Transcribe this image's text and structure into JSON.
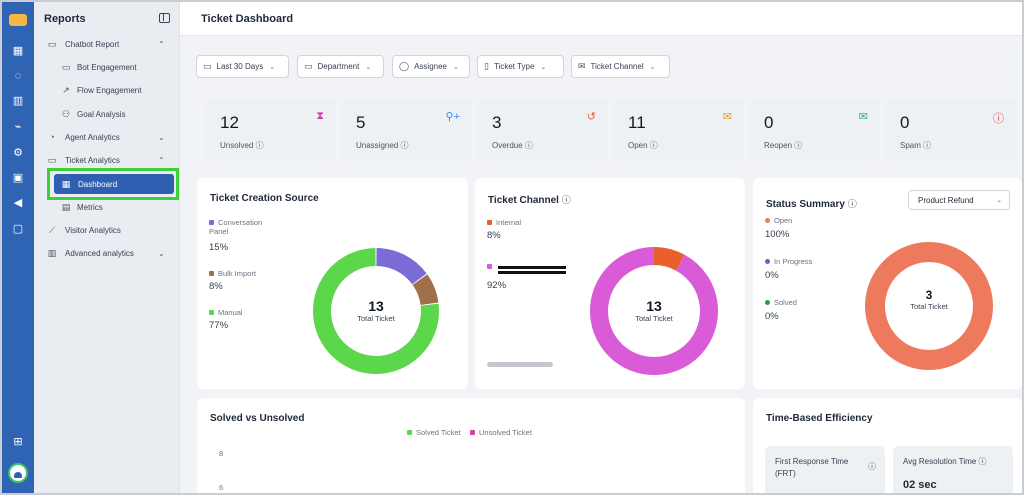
{
  "rail": {
    "icons": [
      "grid-icon",
      "chat-icon",
      "bar-chart-icon",
      "plug-icon",
      "gear-icon",
      "contact-icon",
      "megaphone-icon",
      "bot-icon",
      "gift-icon"
    ]
  },
  "sidebar": {
    "title": "Reports",
    "items": [
      {
        "label": "Chatbot Report",
        "icon": "bot-report-icon",
        "expanded": true
      },
      {
        "label": "Bot Engagement",
        "icon": "calendar-icon"
      },
      {
        "label": "Flow Engagement",
        "icon": "flow-icon"
      },
      {
        "label": "Goal Analysis",
        "icon": "users-icon"
      },
      {
        "label": "Agent Analytics",
        "icon": "pie-icon",
        "expanded": false
      },
      {
        "label": "Ticket Analytics",
        "icon": "ticket-icon",
        "expanded": true
      },
      {
        "label": "Dashboard",
        "icon": "grid-icon",
        "active": true
      },
      {
        "label": "Metrics",
        "icon": "metrics-icon"
      },
      {
        "label": "Visitor Analytics",
        "icon": "line-chart-icon"
      },
      {
        "label": "Advanced analytics",
        "icon": "bar-chart-icon",
        "expanded": false
      }
    ]
  },
  "header": {
    "title": "Ticket Dashboard"
  },
  "filters": [
    {
      "label": "Last 30 Days",
      "icon": "calendar-icon"
    },
    {
      "label": "Department",
      "icon": "folder-icon"
    },
    {
      "label": "Assignee",
      "icon": "user-icon"
    },
    {
      "label": "Ticket Type",
      "icon": "document-icon"
    },
    {
      "label": "Ticket Channel",
      "icon": "mail-icon"
    }
  ],
  "kpis": [
    {
      "value": "12",
      "label": "Unsolved",
      "icon": "hourglass-icon",
      "color": "#d63fa8"
    },
    {
      "value": "5",
      "label": "Unassigned",
      "icon": "add-user-icon",
      "color": "#3b82f6"
    },
    {
      "value": "3",
      "label": "Overdue",
      "icon": "history-icon",
      "color": "#e8602c"
    },
    {
      "value": "11",
      "label": "Open",
      "icon": "mail-open-icon",
      "color": "#e8962c"
    },
    {
      "value": "0",
      "label": "Reopen",
      "icon": "mail-reopen-icon",
      "color": "#2aa58e"
    },
    {
      "value": "0",
      "label": "Spam",
      "icon": "alert-icon",
      "color": "#e23b3b"
    }
  ],
  "creation_source": {
    "title": "Ticket Creation Source",
    "legend": [
      {
        "label": "Conversation Panel",
        "pct": "15%",
        "color": "#7b6bd6"
      },
      {
        "label": "Bulk Import",
        "pct": "8%",
        "color": "#a0704a"
      },
      {
        "label": "Manual",
        "pct": "77%",
        "color": "#5cd64a"
      }
    ],
    "center_value": "13",
    "center_label": "Total Ticket"
  },
  "channel": {
    "title": "Ticket Channel",
    "legend": [
      {
        "label": "Internal",
        "pct": "8%",
        "color": "#e8602c"
      },
      {
        "label": "",
        "pct": "92%",
        "color": "#d95bd8"
      }
    ],
    "center_value": "13",
    "center_label": "Total Ticket"
  },
  "status_summary": {
    "title": "Status Summary",
    "dropdown": "Product Refund",
    "legend": [
      {
        "label": "Open",
        "pct": "100%",
        "color": "#ee7a5e"
      },
      {
        "label": "In Progress",
        "pct": "0%",
        "color": "#6b5bd6"
      },
      {
        "label": "Solved",
        "pct": "0%",
        "color": "#2e9b3a"
      }
    ],
    "center_value": "3",
    "center_label": "Total Ticket"
  },
  "solved_vs_unsolved": {
    "title": "Solved vs Unsolved",
    "legend": [
      {
        "label": "Solved Ticket",
        "color": "#5cd64a"
      },
      {
        "label": "Unsolved Ticket",
        "color": "#d63fa8"
      }
    ],
    "y_ticks": [
      "8",
      "6"
    ]
  },
  "efficiency": {
    "title": "Time-Based Efficiency",
    "items": [
      {
        "label": "First Response Time (FRT)",
        "value": ""
      },
      {
        "label": "Avg Resolution Time",
        "value": "02 sec"
      }
    ]
  },
  "chart_data": [
    {
      "type": "pie",
      "title": "Ticket Creation Source",
      "categories": [
        "Conversation Panel",
        "Bulk Import",
        "Manual"
      ],
      "values": [
        15,
        8,
        77
      ]
    },
    {
      "type": "pie",
      "title": "Ticket Channel",
      "categories": [
        "Internal",
        ""
      ],
      "values": [
        8,
        92
      ]
    },
    {
      "type": "pie",
      "title": "Status Summary",
      "categories": [
        "Open",
        "In Progress",
        "Solved"
      ],
      "values": [
        100,
        0,
        0
      ]
    }
  ]
}
